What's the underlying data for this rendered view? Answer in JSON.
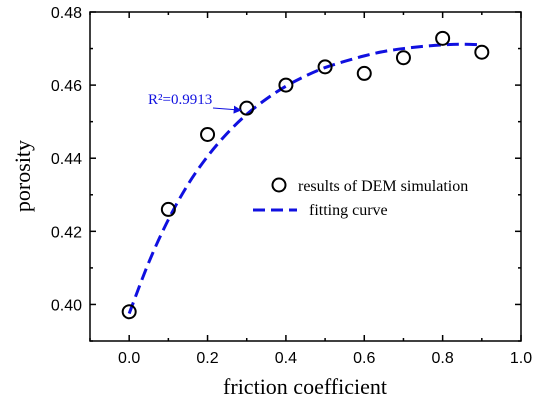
{
  "chart_data": {
    "type": "scatter",
    "title": "",
    "xlabel": "friction coefficient",
    "ylabel": "porosity",
    "xlim": [
      -0.1,
      1.0
    ],
    "ylim": [
      0.39,
      0.48
    ],
    "xticks": [
      "0.0",
      "0.2",
      "0.4",
      "0.6",
      "0.8",
      "1.0"
    ],
    "yticks": [
      "0.40",
      "0.42",
      "0.44",
      "0.46",
      "0.48"
    ],
    "series": [
      {
        "name": "results of DEM simulation",
        "kind": "scatter",
        "marker": "open-circle",
        "color": "#000000",
        "points": [
          {
            "x": 0.0,
            "y": 0.398
          },
          {
            "x": 0.1,
            "y": 0.426
          },
          {
            "x": 0.2,
            "y": 0.4465
          },
          {
            "x": 0.3,
            "y": 0.4537
          },
          {
            "x": 0.4,
            "y": 0.46
          },
          {
            "x": 0.5,
            "y": 0.465
          },
          {
            "x": 0.6,
            "y": 0.4632
          },
          {
            "x": 0.7,
            "y": 0.4675
          },
          {
            "x": 0.8,
            "y": 0.4728
          },
          {
            "x": 0.9,
            "y": 0.469
          }
        ]
      },
      {
        "name": "fitting curve",
        "kind": "line",
        "style": "dashed",
        "color": "#1010e0",
        "points": [
          {
            "x": 0.0,
            "y": 0.3975
          },
          {
            "x": 0.05,
            "y": 0.4115
          },
          {
            "x": 0.1,
            "y": 0.4232
          },
          {
            "x": 0.15,
            "y": 0.4328
          },
          {
            "x": 0.2,
            "y": 0.4405
          },
          {
            "x": 0.25,
            "y": 0.4468
          },
          {
            "x": 0.3,
            "y": 0.452
          },
          {
            "x": 0.35,
            "y": 0.4562
          },
          {
            "x": 0.4,
            "y": 0.4597
          },
          {
            "x": 0.45,
            "y": 0.4625
          },
          {
            "x": 0.5,
            "y": 0.4648
          },
          {
            "x": 0.55,
            "y": 0.4665
          },
          {
            "x": 0.6,
            "y": 0.468
          },
          {
            "x": 0.65,
            "y": 0.4692
          },
          {
            "x": 0.7,
            "y": 0.47
          },
          {
            "x": 0.75,
            "y": 0.4706
          },
          {
            "x": 0.8,
            "y": 0.471
          },
          {
            "x": 0.85,
            "y": 0.4712
          },
          {
            "x": 0.9,
            "y": 0.471
          }
        ]
      }
    ],
    "annotation": {
      "text": "R²=0.9913",
      "color": "#1010e0",
      "points_to": {
        "x": 0.3,
        "y": 0.4515
      }
    },
    "legend_position": "center-right",
    "grid": false
  }
}
